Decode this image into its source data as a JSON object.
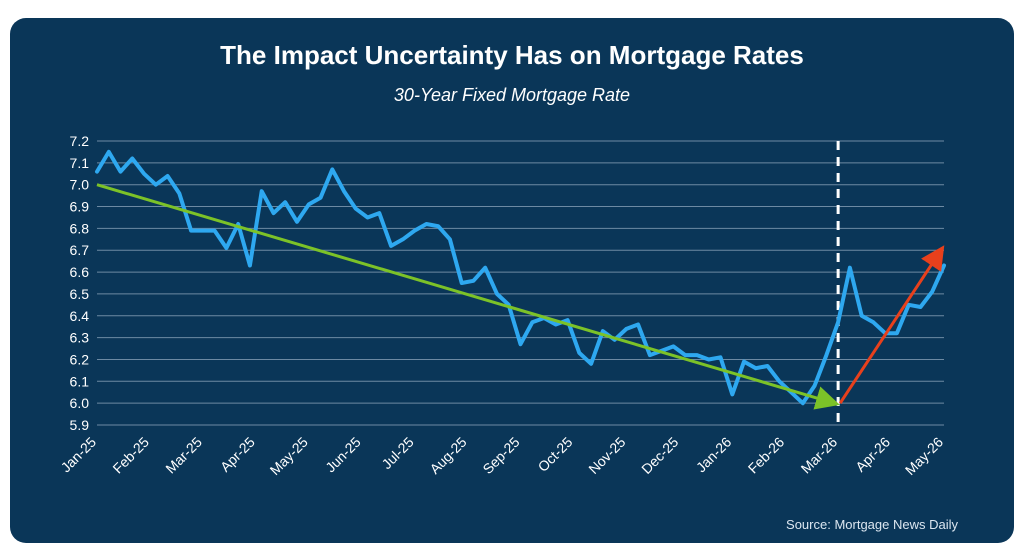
{
  "chart_data": {
    "type": "line",
    "title": "The Impact Uncertainty Has on Mortgage Rates",
    "subtitle": "30-Year Fixed Mortgage Rate",
    "source": "Source: Mortgage News Daily",
    "xlabel": "",
    "ylabel": "",
    "ylim": [
      5.9,
      7.2
    ],
    "yticks": [
      "7.2",
      "7.1",
      "7.0",
      "6.9",
      "6.8",
      "6.7",
      "6.6",
      "6.5",
      "6.4",
      "6.3",
      "6.2",
      "6.1",
      "6.0",
      "5.9"
    ],
    "xticks": [
      "Jan-25",
      "Feb-25",
      "Mar-25",
      "Apr-25",
      "May-25",
      "Jun-25",
      "Jul-25",
      "Aug-25",
      "Sep-25",
      "Oct-25",
      "Nov-25",
      "Dec-25",
      "Jan-26",
      "Feb-26",
      "Mar-26",
      "Apr-26",
      "May-26"
    ],
    "grid": true,
    "series": [
      {
        "values": [
          7.06,
          7.15,
          7.06,
          7.12,
          7.05,
          7.0,
          7.04,
          6.96,
          6.79,
          6.79,
          6.79,
          6.71,
          6.82,
          6.63,
          6.97,
          6.87,
          6.92,
          6.83,
          6.91,
          6.94,
          7.07,
          6.97,
          6.89,
          6.85,
          6.87,
          6.72,
          6.75,
          6.79,
          6.82,
          6.81,
          6.75,
          6.55,
          6.56,
          6.62,
          6.5,
          6.45,
          6.27,
          6.37,
          6.39,
          6.36,
          6.38,
          6.23,
          6.18,
          6.33,
          6.29,
          6.34,
          6.36,
          6.22,
          6.24,
          6.26,
          6.22,
          6.22,
          6.2,
          6.21,
          6.04,
          6.19,
          6.16,
          6.17,
          6.1,
          6.05,
          6.0,
          6.08,
          6.22,
          6.37,
          6.62,
          6.4,
          6.37,
          6.32,
          6.32,
          6.45,
          6.44,
          6.51,
          6.63
        ],
        "color": "#2ea8f0"
      }
    ],
    "trend_down": {
      "from": [
        "Jan-25",
        7.0
      ],
      "to": [
        "Mar-26",
        6.0
      ],
      "color": "#7cc228"
    },
    "trend_up": {
      "from": [
        "Mar-26",
        6.0
      ],
      "to": [
        "May-26",
        6.7
      ],
      "color": "#e8401c"
    },
    "divider_at": "Mar-26"
  }
}
